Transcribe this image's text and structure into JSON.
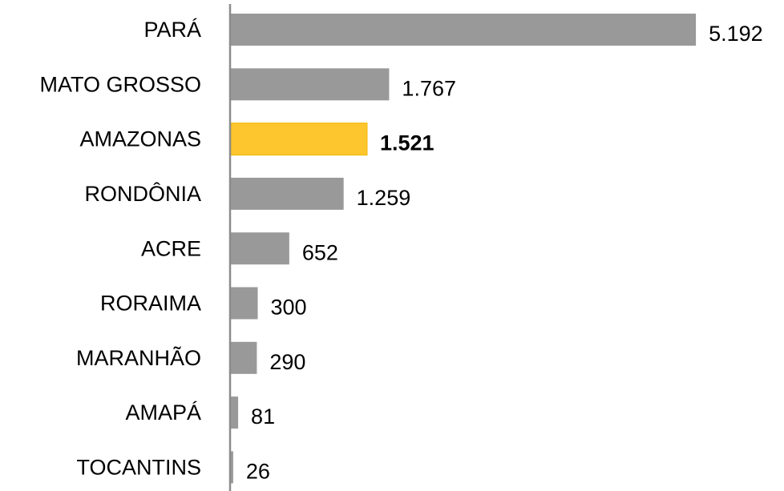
{
  "chart_data": {
    "type": "barh",
    "categories": [
      "PARÁ",
      "MATO GROSSO",
      "AMAZONAS",
      "RONDÔNIA",
      "ACRE",
      "RORAIMA",
      "MARANHÃO",
      "AMAPÁ",
      "TOCANTINS"
    ],
    "values": [
      5192,
      1767,
      1521,
      1259,
      652,
      300,
      290,
      81,
      26
    ],
    "value_labels": [
      "5.192",
      "1.767",
      "1.521",
      "1.259",
      "652",
      "300",
      "290",
      "81",
      "26"
    ],
    "colors": [
      "#999999",
      "#999999",
      "#fec62e",
      "#999999",
      "#999999",
      "#999999",
      "#999999",
      "#999999",
      "#999999"
    ],
    "value_label_bold": [
      false,
      false,
      true,
      false,
      false,
      false,
      false,
      false,
      false
    ],
    "xlim": [
      0,
      5200
    ]
  }
}
